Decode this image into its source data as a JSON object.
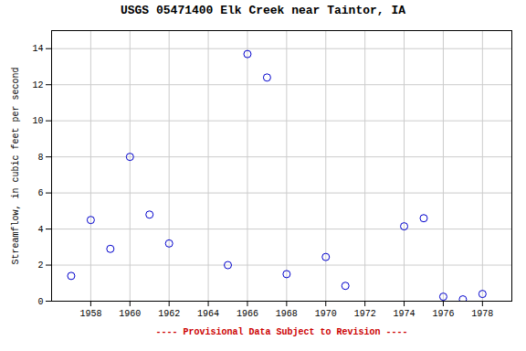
{
  "chart_data": {
    "type": "scatter",
    "title": "USGS 05471400 Elk Creek near Taintor, IA",
    "ylabel": "Streamflow, in cubic feet per second",
    "xlabel": "---- Provisional Data Subject to Revision ----",
    "x": [
      1957,
      1958,
      1959,
      1960,
      1961,
      1962,
      1965,
      1966,
      1967,
      1968,
      1970,
      1971,
      1974,
      1975,
      1976,
      1977,
      1978
    ],
    "values": [
      1.4,
      4.5,
      2.9,
      8.0,
      4.8,
      3.2,
      2.0,
      13.7,
      12.4,
      1.5,
      2.45,
      0.85,
      4.15,
      4.6,
      0.25,
      0.1,
      0.4
    ],
    "color": "#0000cc",
    "xlim": [
      1956,
      1979.5
    ],
    "ylim": [
      0,
      15
    ],
    "xticks": [
      1958,
      1960,
      1962,
      1964,
      1966,
      1968,
      1970,
      1972,
      1974,
      1976,
      1978
    ],
    "yticks": [
      0,
      2,
      4,
      6,
      8,
      10,
      12,
      14
    ],
    "grid": true
  }
}
